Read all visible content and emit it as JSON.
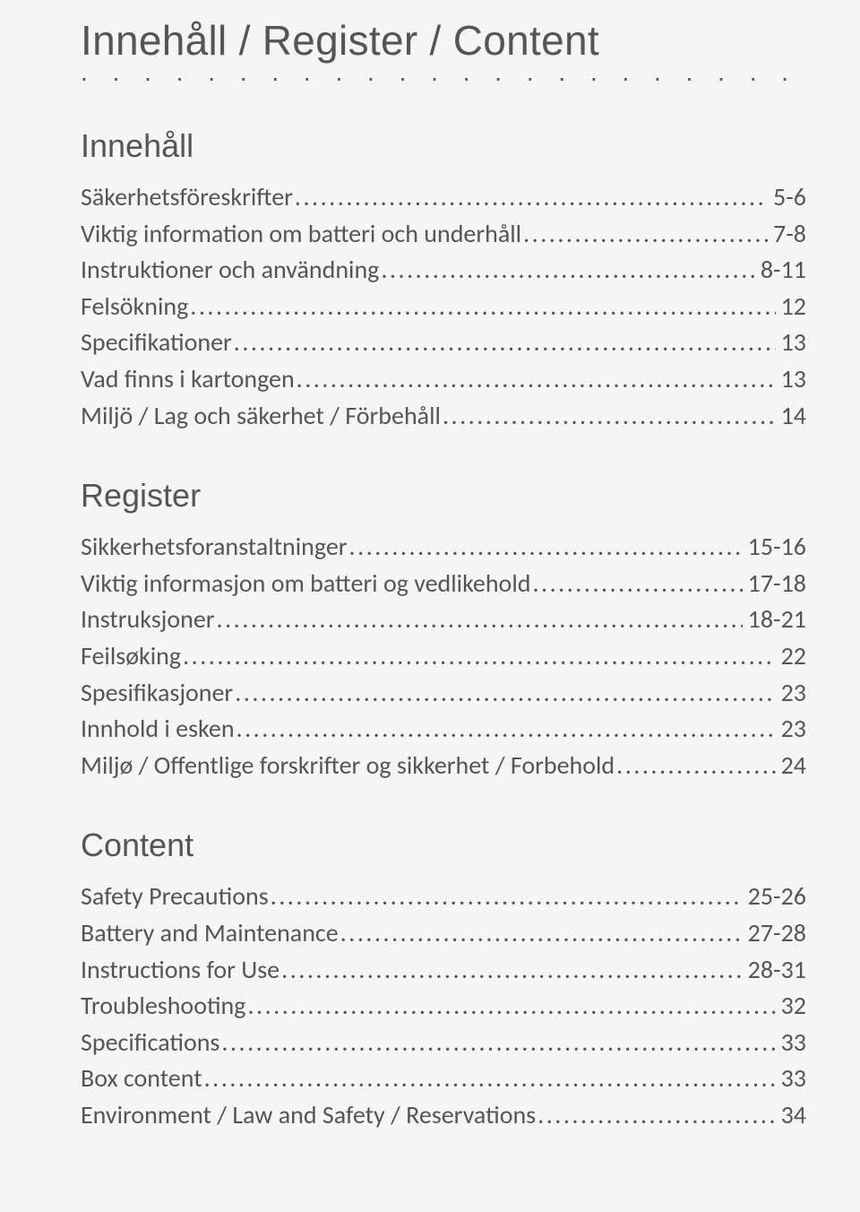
{
  "title": "Innehåll / Register / Content",
  "sections": [
    {
      "heading": "Innehåll",
      "items": [
        {
          "label": "Säkerhetsföreskrifter",
          "page": "5-6"
        },
        {
          "label": "Viktig information om batteri och underhåll",
          "page": "7-8"
        },
        {
          "label": "Instruktioner och användning",
          "page": "8-11"
        },
        {
          "label": "Felsökning",
          "page": "12"
        },
        {
          "label": "Specifikationer",
          "page": "13"
        },
        {
          "label": "Vad finns i kartongen",
          "page": "13"
        },
        {
          "label": "Miljö / Lag och säkerhet / Förbehåll",
          "page": "14"
        }
      ]
    },
    {
      "heading": "Register",
      "items": [
        {
          "label": "Sikkerhetsforanstaltninger",
          "page": "15-16"
        },
        {
          "label": "Viktig informasjon om batteri og vedlikehold",
          "page": "17-18"
        },
        {
          "label": "Instruksjoner",
          "page": "18-21"
        },
        {
          "label": "Feilsøking",
          "page": "22"
        },
        {
          "label": "Spesifikasjoner",
          "page": "23"
        },
        {
          "label": "Innhold i esken",
          "page": "23"
        },
        {
          "label": "Miljø / Offentlige forskrifter og sikkerhet / Forbehold",
          "page": "24"
        }
      ]
    },
    {
      "heading": "Content",
      "items": [
        {
          "label": "Safety Precautions",
          "page": "25-26"
        },
        {
          "label": "Battery and Maintenance",
          "page": "27-28"
        },
        {
          "label": "Instructions for Use",
          "page": "28-31"
        },
        {
          "label": "Troubleshooting",
          "page": "32"
        },
        {
          "label": "Specifications",
          "page": "33"
        },
        {
          "label": "Box content",
          "page": "33"
        },
        {
          "label": "Environment / Law and Safety / Reservations",
          "page": "34"
        }
      ]
    }
  ],
  "colors": {
    "text": "#555555",
    "background": "#f5f5f5"
  },
  "typography": {
    "title_fontsize": 46,
    "section_heading_fontsize": 36,
    "body_fontsize": 28
  },
  "dot_leader": "....................................................................................................................................."
}
